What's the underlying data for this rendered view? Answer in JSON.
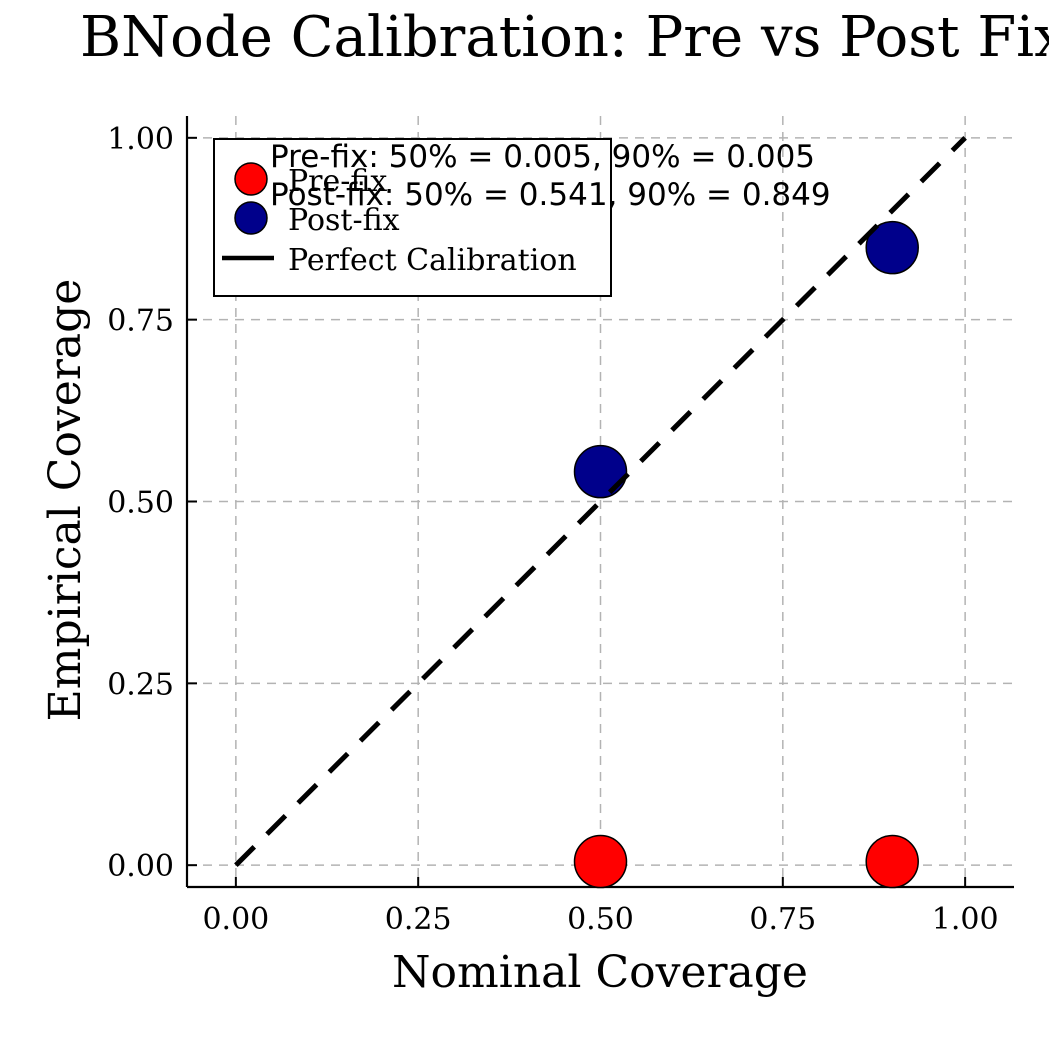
{
  "chart_data": {
    "type": "scatter",
    "title": "BNode Calibration: Pre vs Post Fix",
    "xlabel": "Nominal Coverage",
    "ylabel": "Empirical Coverage",
    "xlim": [
      -0.067,
      1.067
    ],
    "ylim": [
      -0.03,
      1.03
    ],
    "xticks": [
      0.0,
      0.25,
      0.5,
      0.75,
      1.0
    ],
    "yticks": [
      0.0,
      0.25,
      0.5,
      0.75,
      1.0
    ],
    "xtick_labels": [
      "0.00",
      "0.25",
      "0.50",
      "0.75",
      "1.00"
    ],
    "ytick_labels": [
      "0.00",
      "0.25",
      "0.50",
      "0.75",
      "1.00"
    ],
    "grid": true,
    "legend_position": "top-left",
    "series": [
      {
        "name": "Pre-fix",
        "kind": "scatter",
        "color": "#ff0000",
        "x": [
          0.5,
          0.9
        ],
        "y": [
          0.005,
          0.005
        ]
      },
      {
        "name": "Post-fix",
        "kind": "scatter",
        "color": "#00008b",
        "x": [
          0.5,
          0.9
        ],
        "y": [
          0.541,
          0.849
        ]
      },
      {
        "name": "Perfect Calibration",
        "kind": "line",
        "style": "dashed",
        "color": "#000000",
        "x": [
          0.0,
          1.0
        ],
        "y": [
          0.0,
          1.0
        ]
      }
    ],
    "annotations": [
      {
        "text": "Pre-fix: 50% = 0.005, 90% = 0.005"
      },
      {
        "text": "Post-fix: 50% = 0.541, 90% = 0.849"
      }
    ]
  }
}
